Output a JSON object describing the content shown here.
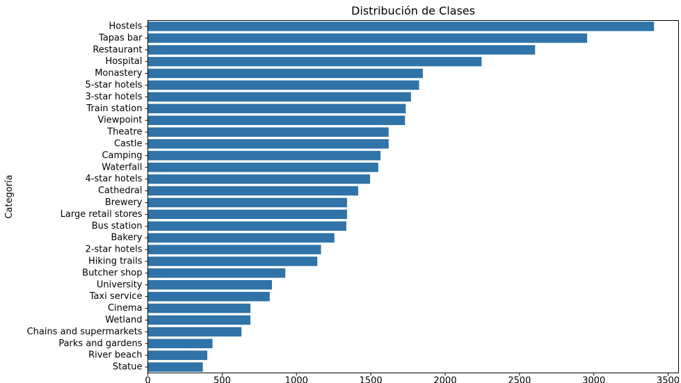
{
  "chart_data": {
    "type": "bar",
    "orientation": "horizontal",
    "title": "Distribución de Clases",
    "xlabel": "",
    "ylabel": "Categoría",
    "xlim": [
      0,
      3570
    ],
    "xticks": [
      0,
      500,
      1000,
      1500,
      2000,
      2500,
      3000,
      3500
    ],
    "grid": false,
    "color": "#2f73a8",
    "categories": [
      "Hostels",
      "Tapas bar",
      "Restaurant",
      "Hospital",
      "Monastery",
      "5-star hotels",
      "3-star hotels",
      "Train station",
      "Viewpoint",
      "Theatre",
      "Castle",
      "Camping",
      "Waterfall",
      "4-star hotels",
      "Cathedral",
      "Brewery",
      "Large retail stores",
      "Bus station",
      "Bakery",
      "2-star hotels",
      "Hiking trails",
      "Butcher shop",
      "University",
      "Taxi service",
      "Cinema",
      "Wetland",
      "Chains and supermarkets",
      "Parks and gardens",
      "River beach",
      "Statue"
    ],
    "values": [
      3405,
      2955,
      2605,
      2245,
      1850,
      1825,
      1770,
      1735,
      1730,
      1620,
      1620,
      1565,
      1550,
      1495,
      1415,
      1340,
      1340,
      1335,
      1255,
      1165,
      1140,
      925,
      835,
      820,
      690,
      690,
      630,
      435,
      400,
      370
    ]
  }
}
